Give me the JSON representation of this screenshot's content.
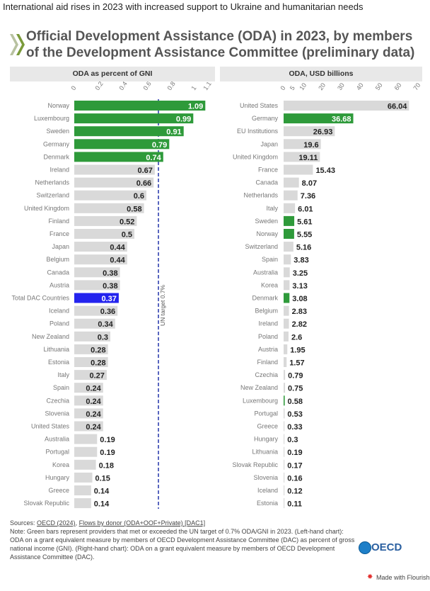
{
  "header": {
    "top_text": "International aid rises in 2023 with increased support to Ukraine and humanitarian needs",
    "title": "Official Development Assistance (ODA) in 2023, by members of the Development Assistance Committee (preliminary data)"
  },
  "colors": {
    "green": "#2e9a3a",
    "grey": "#d9d9d9",
    "blue": "#2323ee",
    "target_line": "#2233aa"
  },
  "chart_data": [
    {
      "type": "bar",
      "orientation": "horizontal",
      "title": "ODA as percent of GNI",
      "xlim": [
        0,
        1.1
      ],
      "ticks": [
        "0",
        "0.2",
        "0.4",
        "0.6",
        "0.8",
        "1",
        "1.1"
      ],
      "reference_line": {
        "value": 0.7,
        "label": "UN target 0.7%"
      },
      "categories": [
        "Norway",
        "Luxembourg",
        "Sweden",
        "Germany",
        "Denmark",
        "Ireland",
        "Netherlands",
        "Switzerland",
        "United Kingdom",
        "Finland",
        "France",
        "Japan",
        "Belgium",
        "Canada",
        "Austria",
        "Total DAC Countries",
        "Iceland",
        "Poland",
        "New Zealand",
        "Lithuania",
        "Estonia",
        "Italy",
        "Spain",
        "Czechia",
        "Slovenia",
        "United States",
        "Australia",
        "Portugal",
        "Korea",
        "Hungary",
        "Greece",
        "Slovak Republic"
      ],
      "values": [
        1.09,
        0.99,
        0.91,
        0.79,
        0.74,
        0.67,
        0.66,
        0.6,
        0.58,
        0.52,
        0.5,
        0.44,
        0.44,
        0.38,
        0.38,
        0.37,
        0.36,
        0.34,
        0.3,
        0.28,
        0.28,
        0.27,
        0.24,
        0.24,
        0.24,
        0.24,
        0.19,
        0.19,
        0.18,
        0.15,
        0.14,
        0.14
      ],
      "labels": [
        "1.09",
        "0.99",
        "0.91",
        "0.79",
        "0.74",
        "0.67",
        "0.66",
        "0.6",
        "0.58",
        "0.52",
        "0.5",
        "0.44",
        "0.44",
        "0.38",
        "0.38",
        "0.37",
        "0.36",
        "0.34",
        "0.3",
        "0.28",
        "0.28",
        "0.27",
        "0.24",
        "0.24",
        "0.24",
        "0.24",
        "0.19",
        "0.19",
        "0.18",
        "0.15",
        "0.14",
        "0.14"
      ],
      "highlight_green": [
        "Norway",
        "Luxembourg",
        "Sweden",
        "Germany",
        "Denmark"
      ],
      "highlight_blue": [
        "Total DAC Countries"
      ]
    },
    {
      "type": "bar",
      "orientation": "horizontal",
      "title": "ODA, USD billions",
      "xlim": [
        0,
        70
      ],
      "ticks": [
        "0",
        "5",
        "10",
        "20",
        "30",
        "40",
        "50",
        "60",
        "70"
      ],
      "categories": [
        "United States",
        "Germany",
        "EU Institutions",
        "Japan",
        "United Kingdom",
        "France",
        "Canada",
        "Netherlands",
        "Italy",
        "Sweden",
        "Norway",
        "Switzerland",
        "Spain",
        "Australia",
        "Korea",
        "Denmark",
        "Belgium",
        "Ireland",
        "Poland",
        "Austria",
        "Finland",
        "Czechia",
        "New Zealand",
        "Luxembourg",
        "Portugal",
        "Greece",
        "Hungary",
        "Lithuania",
        "Slovak Republic",
        "Slovenia",
        "Iceland",
        "Estonia"
      ],
      "values": [
        66.04,
        36.68,
        26.93,
        19.6,
        19.11,
        15.43,
        8.07,
        7.36,
        6.01,
        5.61,
        5.55,
        5.16,
        3.83,
        3.25,
        3.13,
        3.08,
        2.83,
        2.82,
        2.6,
        1.95,
        1.57,
        0.79,
        0.75,
        0.58,
        0.53,
        0.33,
        0.3,
        0.19,
        0.17,
        0.16,
        0.12,
        0.11
      ],
      "labels": [
        "66.04",
        "36.68",
        "26.93",
        "19.6",
        "19.11",
        "15.43",
        "8.07",
        "7.36",
        "6.01",
        "5.61",
        "5.55",
        "5.16",
        "3.83",
        "3.25",
        "3.13",
        "3.08",
        "2.83",
        "2.82",
        "2.6",
        "1.95",
        "1.57",
        "0.79",
        "0.75",
        "0.58",
        "0.53",
        "0.33",
        "0.3",
        "0.19",
        "0.17",
        "0.16",
        "0.12",
        "0.11"
      ],
      "highlight_green": [
        "Germany",
        "Sweden",
        "Norway",
        "Denmark",
        "Luxembourg"
      ]
    }
  ],
  "footer": {
    "sources_prefix": "Sources: ",
    "source1": "OECD (2024)",
    "source_sep": ", ",
    "source2": "Flows by donor (ODA+OOF+Private) [DAC1]",
    "note": "Note: Green bars represent providers that met or exceeded the UN target of 0.7% ODA/GNI in 2023. (Left-hand chart): ODA on a grant equivalent measure by members of OECD Development Assistance Committee (DAC) as percent of gross national income (GNI). (Right-hand chart): ODA on a grant equivalent measure by members of OECD Development Assistance Committee (DAC).",
    "oecd_logo": "OECD",
    "flourish": "Made with Flourish"
  }
}
